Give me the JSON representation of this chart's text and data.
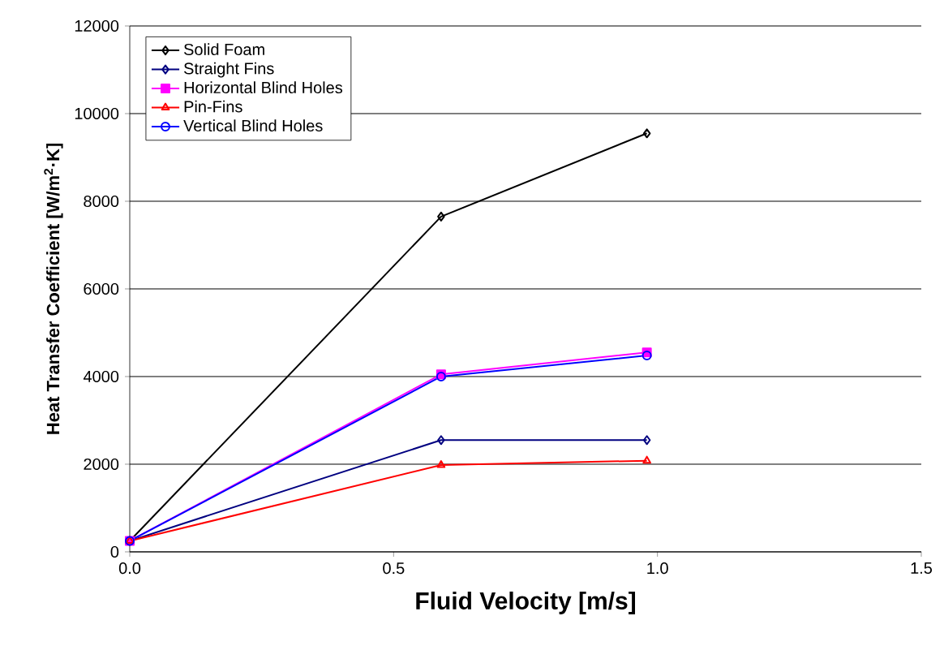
{
  "chart_data": {
    "type": "line",
    "xlabel": "Fluid Velocity [m/s]",
    "ylabel": "Heat Transfer Coefficient [W/m$^{2}$·K]",
    "x": [
      0,
      0.59,
      0.98
    ],
    "series": [
      {
        "name": "Solid Foam",
        "color": "#000000",
        "marker": "diamond",
        "values": [
          250,
          7650,
          9550
        ]
      },
      {
        "name": "Straight Fins",
        "color": "#000080",
        "marker": "diamond",
        "values": [
          250,
          2550,
          2550
        ]
      },
      {
        "name": "Horizontal Blind Holes",
        "color": "#ff00ff",
        "marker": "square",
        "values": [
          250,
          4050,
          4550
        ]
      },
      {
        "name": "Pin-Fins",
        "color": "#ff0000",
        "marker": "triangle",
        "values": [
          250,
          1980,
          2080
        ]
      },
      {
        "name": "Vertical Blind Holes",
        "color": "#0000ff",
        "marker": "circle",
        "values": [
          250,
          4000,
          4480
        ]
      }
    ],
    "xlim": [
      0,
      1.5
    ],
    "xticks": [
      {
        "value": 0,
        "label": "0.0"
      },
      {
        "value": 0.5,
        "label": "0.5"
      },
      {
        "value": 1,
        "label": "1.0"
      },
      {
        "value": 1.5,
        "label": "1.5"
      }
    ],
    "ylim": [
      0,
      12000
    ],
    "yticks": [
      0,
      2000,
      4000,
      6000,
      8000,
      10000,
      12000
    ],
    "grid": "y",
    "legend": "top left",
    "line_style": "solid"
  }
}
